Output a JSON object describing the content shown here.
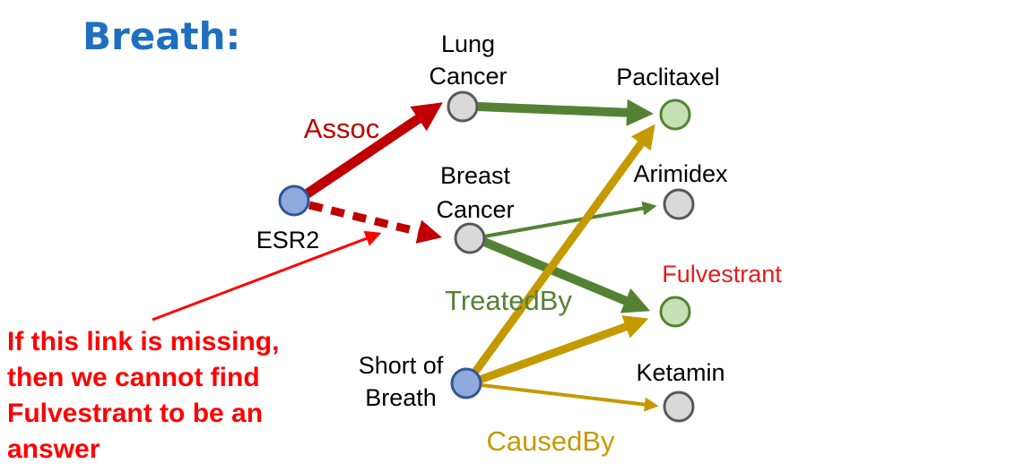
{
  "title": "Breath:",
  "colors": {
    "title": "#1f6fc0",
    "assoc": "#c00000",
    "treated": "#548235",
    "caused": "#c49a00",
    "annotation": "#ff0000",
    "node_blue": "#8faadc",
    "node_blue_stroke": "#2f5597",
    "node_green": "#c5e0b4",
    "node_green_stroke": "#548235",
    "node_gray": "#d9d9d9",
    "node_gray_stroke": "#595959"
  },
  "nodes": {
    "esr2": {
      "label": "ESR2"
    },
    "lung_cancer": {
      "label_line1": "Lung",
      "label_line2": "Cancer"
    },
    "breast_cancer": {
      "label_line1": "Breast",
      "label_line2": "Cancer"
    },
    "short_of_breath": {
      "label_line1": "Short of",
      "label_line2": "Breath"
    },
    "paclitaxel": {
      "label": "Paclitaxel"
    },
    "arimidex": {
      "label": "Arimidex"
    },
    "fulvestrant": {
      "label": "Fulvestrant"
    },
    "ketamin": {
      "label": "Ketamin"
    }
  },
  "edge_labels": {
    "assoc": "Assoc",
    "treated_by": "TreatedBy",
    "caused_by": "CausedBy"
  },
  "annotation": {
    "line1": "If this link is missing,",
    "line2": "then we cannot find",
    "line3": "Fulvestrant to be an",
    "line4": "answer"
  }
}
